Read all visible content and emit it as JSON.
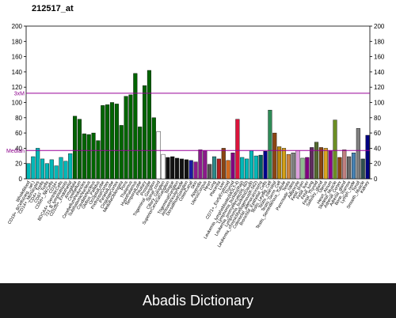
{
  "chart_data": {
    "type": "bar",
    "title": "212517_at",
    "ylim": [
      0,
      200
    ],
    "yticks": [
      0,
      20,
      40,
      60,
      80,
      100,
      120,
      140,
      160,
      180,
      200
    ],
    "grid": false,
    "reference_lines": [
      {
        "label": "3xM",
        "value": 112,
        "color": "#990099"
      },
      {
        "label": "Median",
        "value": 37,
        "color": "#990099"
      }
    ],
    "categories": [
      "WholeBlood",
      "CD19+_BCells(neg._sel.)",
      "CD14+_Monocytes",
      "CD4+_Tcells",
      "CD8+_Tcells",
      "CD56+_NKCells",
      "CD34+",
      "BDCA4+_DentriticCells",
      "721_B_lymphoblasts",
      "CD105+_Endothelial",
      "Amygdala",
      "Cerebellum",
      "CerebellumPeduncles",
      "SubthalamicNucleus",
      "CaudateNucleus",
      "Globus_Pallidus",
      "OccipitalLobe",
      "PrefrontalCortex",
      "ParietalLobe",
      "CingulateCortex",
      "MedullaOblongata",
      "Pons",
      "Thalamus",
      "Hypothalamus",
      "TemporalLobe",
      "Pituitary",
      "Prostate",
      "Trigeminal_Ganglion",
      "Spinal_cord",
      "Ciliary_Ganglion",
      "SuperiorCervicalGanglion",
      "Tongue",
      "TrigeminalGanglion",
      "AtrioventricularNode",
      "DorsalRootGanglion",
      "ColonCanal",
      "Skin",
      "Appendix",
      "UterusCorpus",
      "Heart",
      "Lung",
      "Placenta",
      "Liver",
      "CD71+_EarlyErythroid",
      "Thyroid",
      "Leukemia_lymphoblastic(MOLT-4)",
      "Lymphoma_burkitts(Raji)",
      "Leukemia_promyelocytic(HL-60)",
      "Lymphoma_burkitts(Daudi)",
      "Leukemia_chronicMyelogenous(K-562)",
      "Colorectal_adenocarcinoma",
      "Bronchial_Epithelial_Cells",
      "Testis_Leydig_Cell",
      "Testis_Intersitial",
      "Testis_Germ_Cell",
      "Testis_Seminiferous_Tubule",
      "Testis",
      "Pancreatic_Islets",
      "Adipocyte",
      "Fetal_brain",
      "Fetal_liver",
      "Fetal_lung",
      "Fetal_Thyroid",
      "Salivary_gland",
      "Uterus",
      "Heart_Atrium",
      "Skeletal_Muscle",
      "Adrenal_Cortex",
      "Adrenal_gland",
      "Bone_marrow",
      "Lymph_node",
      "Tonsil",
      "Smooth_Muscle",
      "Kidney"
    ],
    "values": [
      20,
      29,
      40,
      26,
      20,
      25,
      17,
      28,
      23,
      33,
      82,
      78,
      59,
      58,
      60,
      50,
      96,
      97,
      100,
      98,
      70,
      108,
      110,
      138,
      68,
      122,
      142,
      80,
      62,
      32,
      28,
      29,
      27,
      26,
      25,
      24,
      22,
      38,
      37,
      19,
      29,
      26,
      40,
      24,
      34,
      78,
      28,
      26,
      37,
      30,
      31,
      36,
      90,
      60,
      42,
      40,
      32,
      34,
      37,
      27,
      28,
      41,
      48,
      41,
      40,
      37,
      77,
      28,
      38,
      29,
      34,
      66,
      26,
      57
    ],
    "colors": [
      "#00b8b8",
      "#00b8b8",
      "#00b8b8",
      "#00b8b8",
      "#00b8b8",
      "#00b8b8",
      "#00b8b8",
      "#00b8b8",
      "#00b8b8",
      "#00b8b8",
      "#006400",
      "#006400",
      "#006400",
      "#006400",
      "#006400",
      "#006400",
      "#006400",
      "#006400",
      "#006400",
      "#006400",
      "#006400",
      "#006400",
      "#006400",
      "#006400",
      "#006400",
      "#006400",
      "#006400",
      "#006400",
      "#ffffff",
      "#ffffff",
      "#111111",
      "#111111",
      "#111111",
      "#111111",
      "#111111",
      "#1a1aa0",
      "#8b1a8b",
      "#8b1a8b",
      "#8b1a8b",
      "#555555",
      "#2e8b8b",
      "#b22222",
      "#8b4513",
      "#d2691e",
      "#800080",
      "#dc143c",
      "#00b8b8",
      "#00b8b8",
      "#00b8b8",
      "#00b8b8",
      "#006060",
      "#00008b",
      "#2e8b57",
      "#8b4513",
      "#b8860b",
      "#d4a017",
      "#cd853f",
      "#808080",
      "#dda0dd",
      "#8fbc8f",
      "#800080",
      "#5f2d5f",
      "#556b2f",
      "#8b4513",
      "#daa520",
      "#8b008b",
      "#6b8e23",
      "#8b4513",
      "#c08080",
      "#696969",
      "#4682b4",
      "#808080",
      "#2f4f4f",
      "#000080"
    ]
  },
  "footer": {
    "text": "Abadis Dictionary"
  }
}
